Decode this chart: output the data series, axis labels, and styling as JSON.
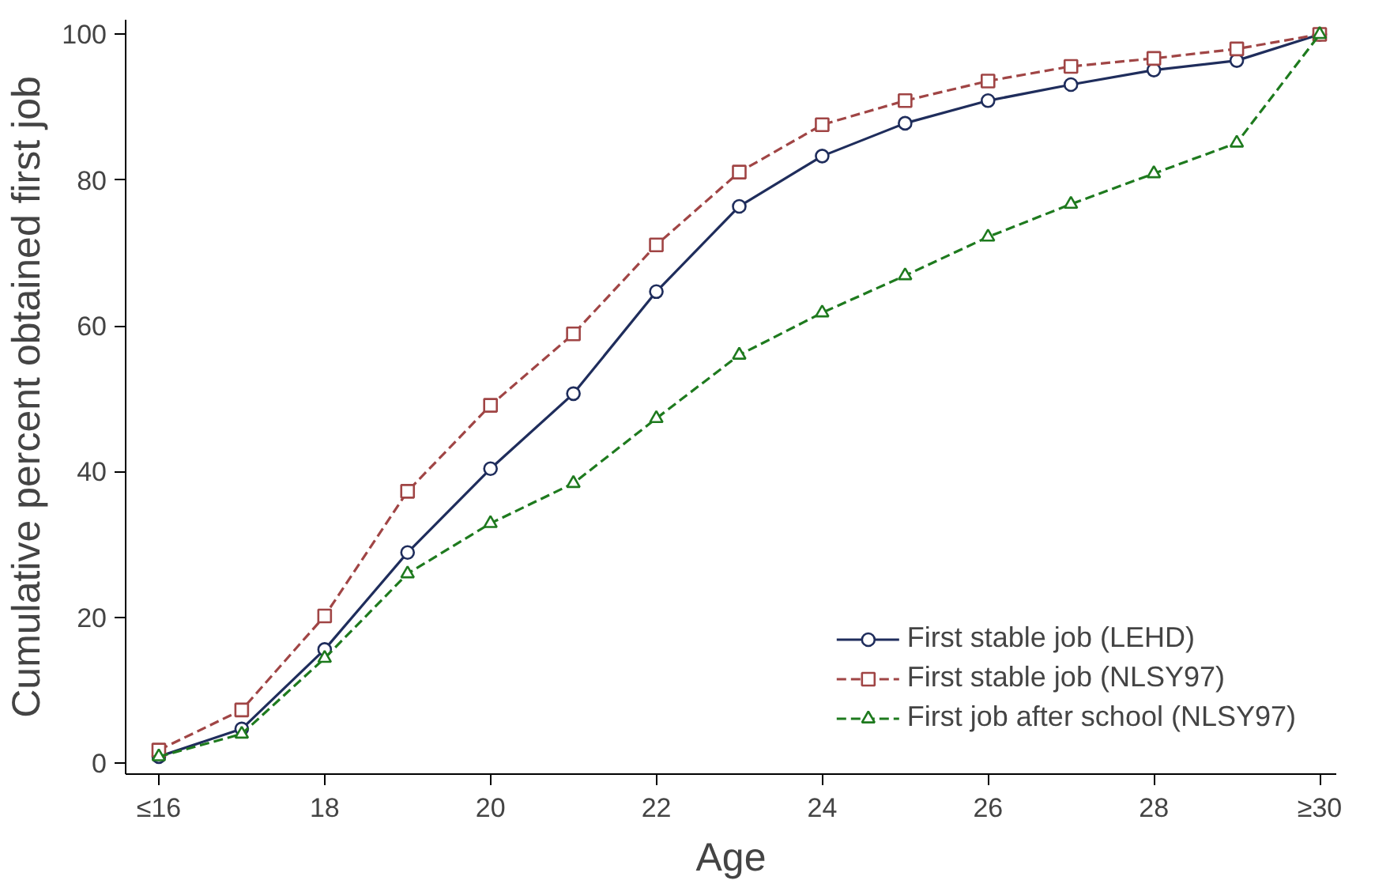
{
  "chart_data": {
    "type": "line",
    "xlabel": "Age",
    "ylabel": "Cumulative percent obtained first job",
    "x": [
      16,
      17,
      18,
      19,
      20,
      21,
      22,
      23,
      24,
      25,
      26,
      27,
      28,
      29,
      30
    ],
    "series": [
      {
        "name": "First stable job (LEHD)",
        "color": "#1f2d5c",
        "marker": "circle",
        "line_style": "solid",
        "values": [
          0.9,
          4.7,
          15.6,
          28.9,
          40.4,
          50.7,
          64.7,
          76.4,
          83.3,
          87.8,
          90.9,
          93.1,
          95.1,
          96.4,
          100
        ]
      },
      {
        "name": "First stable job (NLSY97)",
        "color": "#a04545",
        "marker": "square",
        "line_style": "dashed",
        "values": [
          1.8,
          7.3,
          20.2,
          37.3,
          49.1,
          58.9,
          71.1,
          81.1,
          87.6,
          90.9,
          93.6,
          95.6,
          96.7,
          98,
          100
        ]
      },
      {
        "name": "First job after school (NLSY97)",
        "color": "#1e7a1e",
        "marker": "triangle",
        "line_style": "dashed",
        "values": [
          0.9,
          4,
          14.4,
          26,
          32.9,
          38.4,
          47.3,
          56,
          61.8,
          66.9,
          72.2,
          76.7,
          80.9,
          85.1,
          100
        ]
      }
    ],
    "xlim": [
      15.6,
      30.2
    ],
    "ylim": [
      -1.5,
      102
    ],
    "xticks": [
      {
        "value": 16,
        "label": "≤16"
      },
      18,
      20,
      22,
      24,
      26,
      28,
      {
        "value": 30,
        "label": "≥30"
      }
    ],
    "yticks": [
      0,
      20,
      40,
      60,
      80,
      100
    ],
    "grid": false,
    "legend": "bottom right"
  }
}
